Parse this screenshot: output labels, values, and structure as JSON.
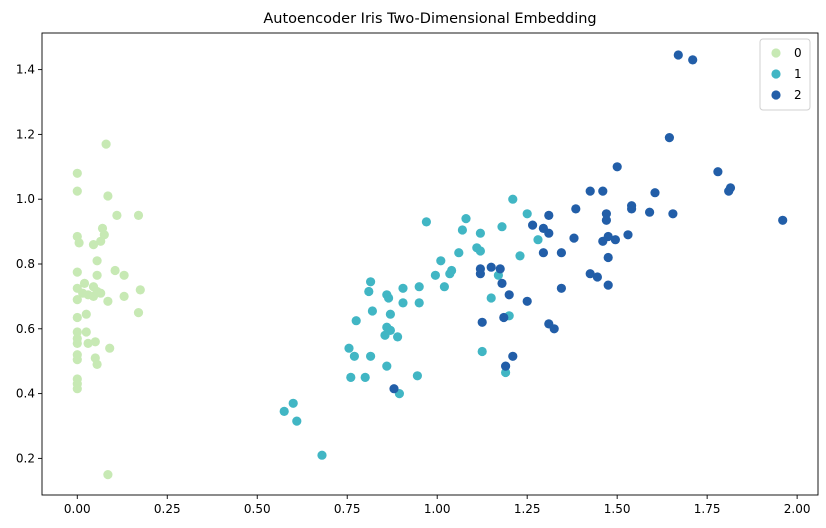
{
  "chart_data": {
    "type": "scatter",
    "title": "Autoencoder Iris Two-Dimensional Embedding",
    "xlabel": "",
    "ylabel": "",
    "xlim": [
      -0.098,
      2.058
    ],
    "ylim": [
      0.087,
      1.513
    ],
    "xticks": [
      0.0,
      0.25,
      0.5,
      0.75,
      1.0,
      1.25,
      1.5,
      1.75,
      2.0
    ],
    "xtick_labels": [
      "0.00",
      "0.25",
      "0.50",
      "0.75",
      "1.00",
      "1.25",
      "1.50",
      "1.75",
      "2.00"
    ],
    "yticks": [
      0.2,
      0.4,
      0.6,
      0.8,
      1.0,
      1.2,
      1.4
    ],
    "ytick_labels": [
      "0.2",
      "0.4",
      "0.6",
      "0.8",
      "1.0",
      "1.2",
      "1.4"
    ],
    "grid": false,
    "legend_position": "top-right",
    "series": [
      {
        "name": "0",
        "color": "#c7e9b4",
        "points": [
          [
            0.08,
            1.17
          ],
          [
            0.0,
            1.08
          ],
          [
            0.0,
            1.025
          ],
          [
            0.085,
            1.01
          ],
          [
            0.11,
            0.95
          ],
          [
            0.17,
            0.95
          ],
          [
            0.07,
            0.91
          ],
          [
            0.0,
            0.885
          ],
          [
            0.075,
            0.89
          ],
          [
            0.005,
            0.865
          ],
          [
            0.045,
            0.86
          ],
          [
            0.065,
            0.87
          ],
          [
            0.055,
            0.81
          ],
          [
            0.0,
            0.775
          ],
          [
            0.105,
            0.78
          ],
          [
            0.055,
            0.765
          ],
          [
            0.13,
            0.765
          ],
          [
            0.02,
            0.74
          ],
          [
            0.0,
            0.725
          ],
          [
            0.045,
            0.73
          ],
          [
            0.175,
            0.72
          ],
          [
            0.015,
            0.71
          ],
          [
            0.055,
            0.715
          ],
          [
            0.03,
            0.705
          ],
          [
            0.065,
            0.71
          ],
          [
            0.045,
            0.7
          ],
          [
            0.13,
            0.7
          ],
          [
            0.0,
            0.69
          ],
          [
            0.085,
            0.685
          ],
          [
            0.025,
            0.645
          ],
          [
            0.17,
            0.65
          ],
          [
            0.0,
            0.635
          ],
          [
            0.0,
            0.59
          ],
          [
            0.025,
            0.59
          ],
          [
            0.0,
            0.57
          ],
          [
            0.03,
            0.555
          ],
          [
            0.05,
            0.56
          ],
          [
            0.0,
            0.555
          ],
          [
            0.09,
            0.54
          ],
          [
            0.0,
            0.52
          ],
          [
            0.05,
            0.51
          ],
          [
            0.0,
            0.505
          ],
          [
            0.055,
            0.49
          ],
          [
            0.0,
            0.445
          ],
          [
            0.0,
            0.43
          ],
          [
            0.0,
            0.415
          ],
          [
            0.085,
            0.15
          ]
        ]
      },
      {
        "name": "1",
        "color": "#41b6c4",
        "points": [
          [
            1.21,
            1.0
          ],
          [
            1.25,
            0.955
          ],
          [
            1.08,
            0.94
          ],
          [
            0.97,
            0.93
          ],
          [
            1.18,
            0.915
          ],
          [
            1.07,
            0.905
          ],
          [
            1.12,
            0.895
          ],
          [
            1.11,
            0.85
          ],
          [
            1.12,
            0.84
          ],
          [
            1.06,
            0.835
          ],
          [
            1.23,
            0.825
          ],
          [
            1.28,
            0.875
          ],
          [
            1.01,
            0.81
          ],
          [
            0.995,
            0.765
          ],
          [
            1.04,
            0.78
          ],
          [
            1.035,
            0.77
          ],
          [
            1.17,
            0.765
          ],
          [
            0.815,
            0.745
          ],
          [
            1.02,
            0.73
          ],
          [
            0.905,
            0.725
          ],
          [
            0.95,
            0.73
          ],
          [
            0.81,
            0.715
          ],
          [
            0.86,
            0.705
          ],
          [
            0.865,
            0.695
          ],
          [
            1.15,
            0.695
          ],
          [
            0.905,
            0.68
          ],
          [
            0.95,
            0.68
          ],
          [
            0.82,
            0.655
          ],
          [
            0.87,
            0.645
          ],
          [
            0.775,
            0.625
          ],
          [
            1.2,
            0.64
          ],
          [
            0.86,
            0.605
          ],
          [
            0.87,
            0.595
          ],
          [
            0.855,
            0.58
          ],
          [
            0.89,
            0.575
          ],
          [
            0.755,
            0.54
          ],
          [
            1.125,
            0.53
          ],
          [
            0.77,
            0.515
          ],
          [
            0.815,
            0.515
          ],
          [
            0.86,
            0.485
          ],
          [
            1.19,
            0.465
          ],
          [
            0.76,
            0.45
          ],
          [
            0.8,
            0.45
          ],
          [
            0.945,
            0.455
          ],
          [
            0.895,
            0.4
          ],
          [
            0.6,
            0.37
          ],
          [
            0.575,
            0.345
          ],
          [
            0.61,
            0.315
          ],
          [
            0.68,
            0.21
          ]
        ]
      },
      {
        "name": "2",
        "color": "#225ea8",
        "points": [
          [
            1.67,
            1.445
          ],
          [
            1.71,
            1.43
          ],
          [
            1.645,
            1.19
          ],
          [
            1.5,
            1.1
          ],
          [
            1.78,
            1.085
          ],
          [
            1.815,
            1.035
          ],
          [
            1.81,
            1.025
          ],
          [
            1.425,
            1.025
          ],
          [
            1.46,
            1.025
          ],
          [
            1.605,
            1.02
          ],
          [
            1.385,
            0.97
          ],
          [
            1.54,
            0.98
          ],
          [
            1.54,
            0.97
          ],
          [
            1.59,
            0.96
          ],
          [
            1.655,
            0.955
          ],
          [
            1.47,
            0.955
          ],
          [
            1.31,
            0.95
          ],
          [
            1.47,
            0.935
          ],
          [
            1.96,
            0.935
          ],
          [
            1.265,
            0.92
          ],
          [
            1.295,
            0.91
          ],
          [
            1.31,
            0.895
          ],
          [
            1.475,
            0.885
          ],
          [
            1.53,
            0.89
          ],
          [
            1.495,
            0.875
          ],
          [
            1.46,
            0.87
          ],
          [
            1.38,
            0.88
          ],
          [
            1.295,
            0.835
          ],
          [
            1.345,
            0.835
          ],
          [
            1.475,
            0.82
          ],
          [
            1.15,
            0.79
          ],
          [
            1.175,
            0.785
          ],
          [
            1.12,
            0.785
          ],
          [
            1.12,
            0.77
          ],
          [
            1.425,
            0.77
          ],
          [
            1.445,
            0.76
          ],
          [
            1.18,
            0.74
          ],
          [
            1.475,
            0.735
          ],
          [
            1.345,
            0.725
          ],
          [
            1.2,
            0.705
          ],
          [
            1.25,
            0.685
          ],
          [
            1.185,
            0.635
          ],
          [
            1.125,
            0.62
          ],
          [
            1.31,
            0.615
          ],
          [
            1.325,
            0.6
          ],
          [
            1.21,
            0.515
          ],
          [
            1.19,
            0.485
          ],
          [
            0.88,
            0.415
          ]
        ]
      }
    ]
  }
}
